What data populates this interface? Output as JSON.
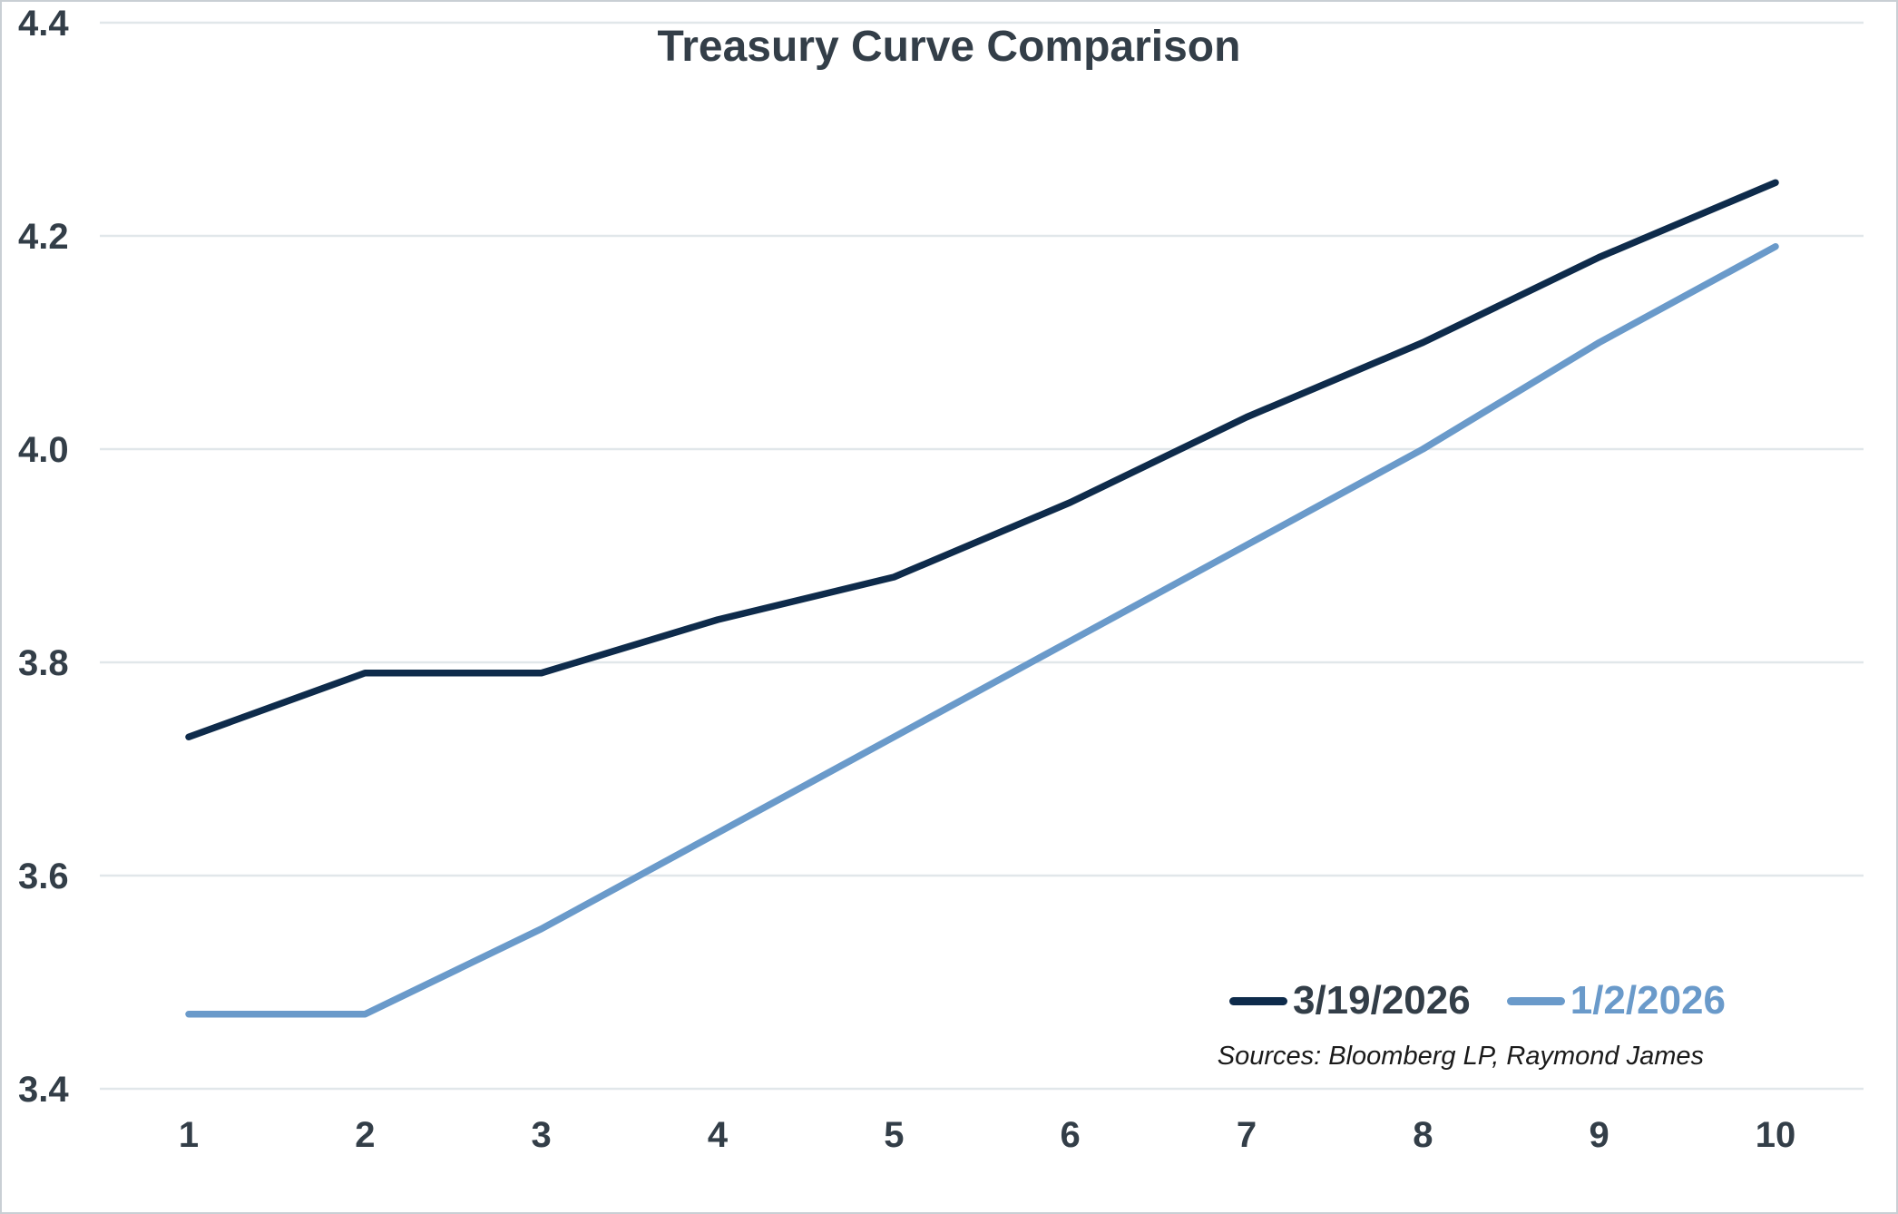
{
  "chart_data": {
    "type": "line",
    "title": "Treasury Curve Comparison",
    "x": [
      1,
      2,
      3,
      4,
      5,
      6,
      7,
      8,
      9,
      10
    ],
    "x_tick_labels": [
      "1",
      "2",
      "3",
      "4",
      "5",
      "6",
      "7",
      "8",
      "9",
      "10"
    ],
    "xlabel": "",
    "ylabel": "",
    "ylim": [
      3.4,
      4.4
    ],
    "y_ticks": [
      3.4,
      3.6,
      3.8,
      4.0,
      4.2,
      4.4
    ],
    "grid": "horizontal-only",
    "legend_position": "inside-bottom-right",
    "series": [
      {
        "name": "3/19/2026",
        "color": "#0e2b4b",
        "label_color": "#333e48",
        "values": [
          3.73,
          3.79,
          3.79,
          3.84,
          3.88,
          3.95,
          4.03,
          4.1,
          4.18,
          4.25
        ]
      },
      {
        "name": "1/2/2026",
        "color": "#6a9aca",
        "label_color": "#6a9aca",
        "values": [
          3.47,
          3.47,
          3.55,
          3.64,
          3.73,
          3.82,
          3.91,
          4.0,
          4.1,
          4.19
        ]
      }
    ],
    "source_note": "Sources: Bloomberg LP, Raymond James",
    "colors": {
      "grid": "#e1e7ea",
      "tick_text": "#333e48",
      "title_text": "#333e48",
      "frame_border": "#c9cfd4",
      "background": "#ffffff"
    }
  }
}
